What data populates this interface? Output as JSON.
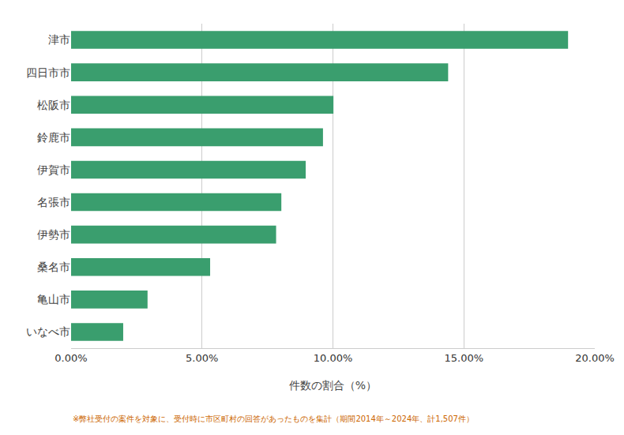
{
  "chart_data": {
    "type": "bar",
    "orientation": "horizontal",
    "categories": [
      "津市",
      "四日市市",
      "松阪市",
      "鈴鹿市",
      "伊賀市",
      "名張市",
      "伊勢市",
      "桑名市",
      "亀山市",
      "いなべ市"
    ],
    "values": [
      18.98,
      14.4,
      10.02,
      9.62,
      8.96,
      8.03,
      7.83,
      5.31,
      2.92,
      1.99
    ],
    "color": "#3a9e6e",
    "xlabel": "件数の割合（%）",
    "xlim": [
      0,
      20
    ],
    "xticks": [
      {
        "value": 0,
        "label": "0.00%"
      },
      {
        "value": 5,
        "label": "5.00%"
      },
      {
        "value": 10,
        "label": "10.00%"
      },
      {
        "value": 15,
        "label": "15.00%"
      },
      {
        "value": 20,
        "label": "20.00%"
      }
    ],
    "grid": true,
    "annotations": [
      {
        "text": "※弊社受付の案件を対象に、受付時に市区町村の回答があったものを集計（期間2014年～2024年、計1,507件）",
        "color": "#cc6600"
      }
    ]
  }
}
